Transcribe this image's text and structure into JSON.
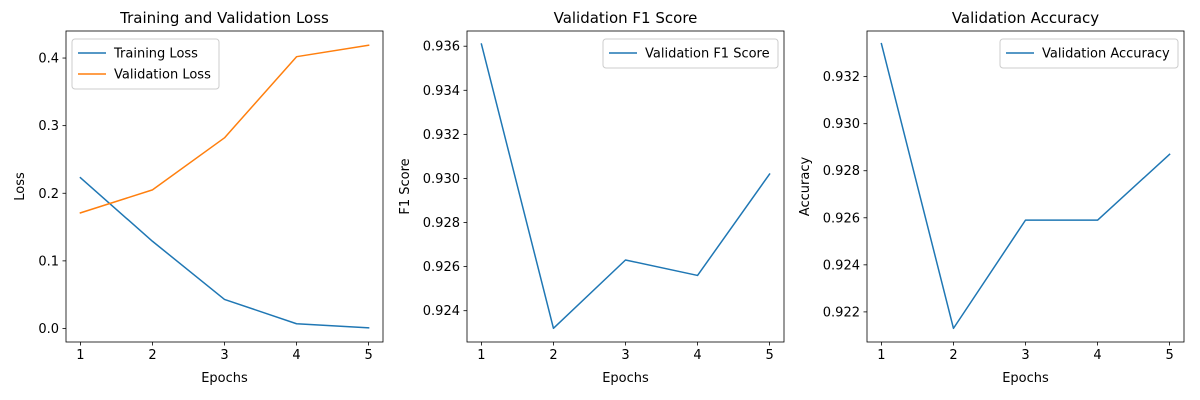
{
  "chart_data": [
    {
      "type": "line",
      "title": "Training and Validation Loss",
      "xlabel": "Epochs",
      "ylabel": "Loss",
      "x": [
        1,
        2,
        3,
        4,
        5
      ],
      "xticks": [
        "1",
        "2",
        "3",
        "4",
        "5"
      ],
      "xlim": [
        0.8,
        5.2
      ],
      "yticks": [
        "0.0",
        "0.1",
        "0.2",
        "0.3",
        "0.4"
      ],
      "ylim": [
        -0.02,
        0.44
      ],
      "grid": false,
      "legend_position": "top-left",
      "series": [
        {
          "name": "Training Loss",
          "color": "#1f77b4",
          "values": [
            0.223,
            0.129,
            0.043,
            0.007,
            0.001
          ]
        },
        {
          "name": "Validation Loss",
          "color": "#ff7f0e",
          "values": [
            0.171,
            0.205,
            0.282,
            0.402,
            0.419
          ]
        }
      ]
    },
    {
      "type": "line",
      "title": "Validation F1 Score",
      "xlabel": "Epochs",
      "ylabel": "F1 Score",
      "x": [
        1,
        2,
        3,
        4,
        5
      ],
      "xticks": [
        "1",
        "2",
        "3",
        "4",
        "5"
      ],
      "xlim": [
        0.8,
        5.2
      ],
      "yticks": [
        "0.924",
        "0.926",
        "0.928",
        "0.930",
        "0.932",
        "0.934",
        "0.936"
      ],
      "ylim": [
        0.92258,
        0.93669
      ],
      "grid": false,
      "legend_position": "top-right",
      "series": [
        {
          "name": "Validation F1 Score",
          "color": "#1f77b4",
          "values": [
            0.9361,
            0.9232,
            0.9263,
            0.9256,
            0.9302
          ]
        }
      ]
    },
    {
      "type": "line",
      "title": "Validation Accuracy",
      "xlabel": "Epochs",
      "ylabel": "Accuracy",
      "x": [
        1,
        2,
        3,
        4,
        5
      ],
      "xticks": [
        "1",
        "2",
        "3",
        "4",
        "5"
      ],
      "xlim": [
        0.8,
        5.2
      ],
      "yticks": [
        "0.922",
        "0.924",
        "0.926",
        "0.928",
        "0.930",
        "0.932"
      ],
      "ylim": [
        0.92072,
        0.93394
      ],
      "grid": false,
      "legend_position": "top-right",
      "series": [
        {
          "name": "Validation Accuracy",
          "color": "#1f77b4",
          "values": [
            0.9334,
            0.9213,
            0.9259,
            0.9259,
            0.9287
          ]
        }
      ]
    }
  ]
}
